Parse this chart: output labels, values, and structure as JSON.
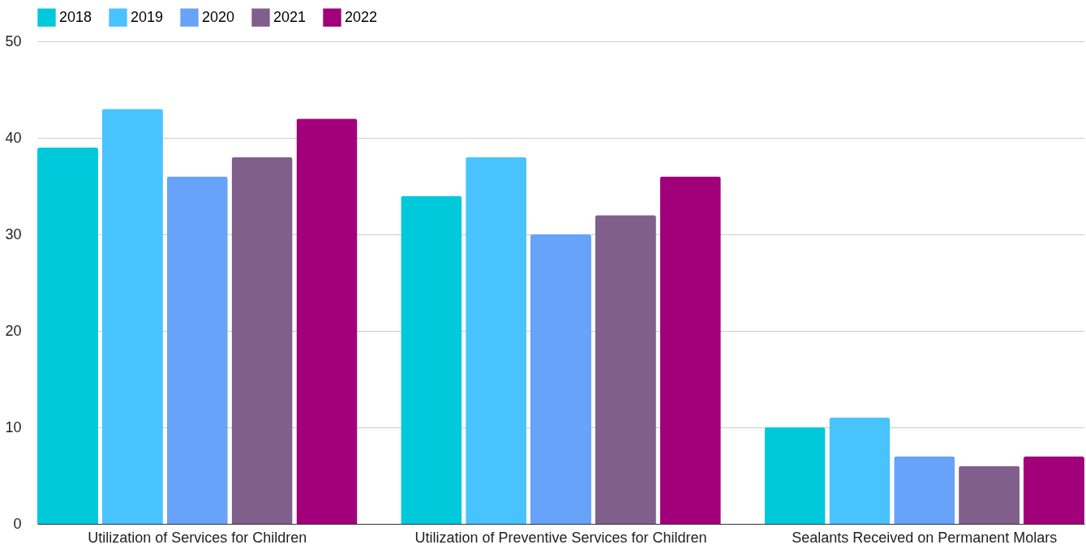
{
  "chart_data": {
    "type": "bar",
    "categories": [
      "Utilization of Services for Children",
      "Utilization of Preventive Services for Children",
      "Sealants Received on Permanent Molars"
    ],
    "series": [
      {
        "name": "2018",
        "color": "#00c9db",
        "values": [
          39,
          34,
          10
        ]
      },
      {
        "name": "2019",
        "color": "#48c3fe",
        "values": [
          43,
          38,
          11
        ]
      },
      {
        "name": "2020",
        "color": "#67a3f8",
        "values": [
          36,
          30,
          7
        ]
      },
      {
        "name": "2021",
        "color": "#815f8c",
        "values": [
          38,
          32,
          6
        ]
      },
      {
        "name": "2022",
        "color": "#a1007a",
        "values": [
          42,
          36,
          7
        ]
      }
    ],
    "ylim": [
      0,
      50
    ],
    "yticks": [
      0,
      10,
      20,
      30,
      40,
      50
    ],
    "grid": "y",
    "legend": "top"
  }
}
